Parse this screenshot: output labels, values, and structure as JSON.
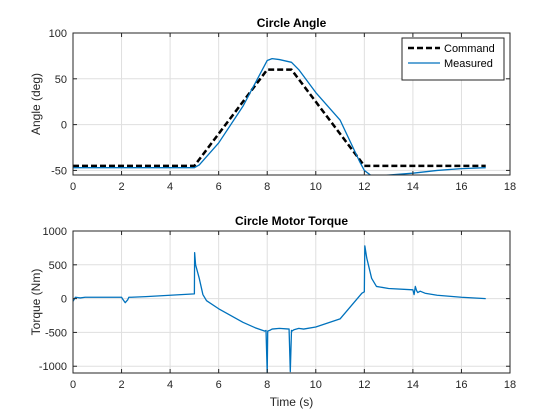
{
  "chart_data": [
    {
      "type": "line",
      "title": "Circle Angle",
      "xlabel": "",
      "ylabel": "Angle (deg)",
      "xlim": [
        0,
        18
      ],
      "ylim": [
        -55,
        100
      ],
      "xticks": [
        0,
        2,
        4,
        6,
        8,
        10,
        12,
        14,
        16,
        18
      ],
      "yticks": [
        -50,
        0,
        50,
        100
      ],
      "grid": true,
      "legend_position": "top-right",
      "series": [
        {
          "name": "Command",
          "color": "#000000",
          "style": "dashed",
          "x": [
            0,
            5,
            8,
            9,
            12,
            17
          ],
          "y": [
            -45,
            -45,
            60,
            60,
            -45,
            -45
          ]
        },
        {
          "name": "Measured",
          "color": "#0072bd",
          "style": "solid",
          "x": [
            0,
            5,
            5.2,
            6,
            7,
            7.6,
            8,
            8.2,
            8.5,
            9,
            9.3,
            10,
            11,
            11.8,
            12,
            12.3,
            13,
            14,
            15,
            16,
            17
          ],
          "y": [
            -47,
            -47,
            -44,
            -20,
            20,
            50,
            70,
            72,
            71,
            68,
            60,
            35,
            5,
            -40,
            -50,
            -56,
            -55,
            -53,
            -50,
            -48,
            -47
          ]
        }
      ]
    },
    {
      "type": "line",
      "title": "Circle Motor Torque",
      "xlabel": "Time (s)",
      "ylabel": "Torque (Nm)",
      "xlim": [
        0,
        18
      ],
      "ylim": [
        -1100,
        1000
      ],
      "xticks": [
        0,
        2,
        4,
        6,
        8,
        10,
        12,
        14,
        16,
        18
      ],
      "yticks": [
        -1000,
        -500,
        0,
        500,
        1000
      ],
      "grid": true,
      "series": [
        {
          "name": "",
          "color": "#0072bd",
          "style": "solid",
          "x": [
            0,
            0.1,
            0.3,
            0.5,
            1,
            2,
            2.05,
            2.15,
            2.25,
            2.3,
            2.4,
            3,
            4,
            5,
            5.01,
            5.05,
            5.2,
            5.35,
            5.5,
            6,
            6.5,
            7,
            7.5,
            7.9,
            7.95,
            8.0,
            8.02,
            8.1,
            8.2,
            8.5,
            8.9,
            8.95,
            9.0,
            9.02,
            9.1,
            9.3,
            9.5,
            10,
            11,
            11.9,
            12.0,
            12.02,
            12.1,
            12.3,
            12.5,
            13,
            14,
            14.05,
            14.1,
            14.15,
            14.2,
            14.3,
            14.5,
            15,
            16,
            17
          ],
          "y": [
            -40,
            20,
            10,
            20,
            20,
            20,
            -10,
            -60,
            -20,
            20,
            20,
            30,
            50,
            70,
            680,
            500,
            300,
            60,
            -30,
            -150,
            -250,
            -350,
            -430,
            -480,
            -470,
            -1100,
            -480,
            -470,
            -450,
            -440,
            -450,
            -1080,
            -470,
            -480,
            -460,
            -440,
            -450,
            -420,
            -300,
            80,
            100,
            780,
            600,
            300,
            180,
            150,
            130,
            60,
            180,
            120,
            90,
            110,
            80,
            50,
            20,
            0
          ]
        }
      ]
    }
  ]
}
